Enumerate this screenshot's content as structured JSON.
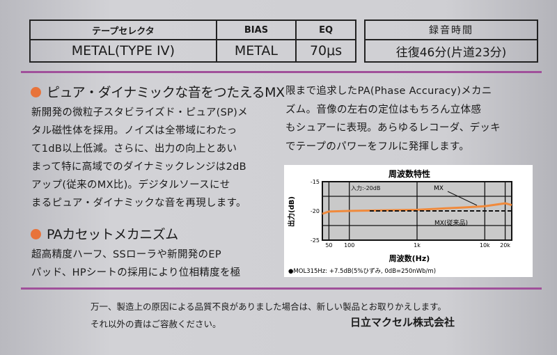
{
  "spec_table": {
    "headers": [
      "テープセレクタ",
      "BIAS",
      "EQ"
    ],
    "values": [
      "METAL(TYPE IV)",
      "METAL",
      "70μs"
    ]
  },
  "rec_time": {
    "header": "録音時間",
    "value": "往復46分(片道23分)"
  },
  "section1": {
    "heading": "ピュア・ダイナミックな音をつたえるMX",
    "lines": [
      "新開発の微粒子スタビライズド・ピュア(SP)メ",
      "タル磁性体を採用。ノイズは全帯域にわたっ",
      "て1dB以上低減。さらに、出力の向上とあい",
      "まって特に高域でのダイナミックレンジは2dB",
      "アップ(従来のMX比)。デジタルソースにせ",
      "まるピュア・ダイナミックな音を再現します。"
    ]
  },
  "section2": {
    "heading": "PAカセットメカニズム",
    "lines": [
      "超高精度ハーフ、SSローラや新開発のEP",
      "パッド、HPシートの採用により位相精度を極",
      "限まで追求したPA(Phase Accuracy)メカニ",
      "ズム。音像の左右の定位はもちろん立体感",
      "もシュアーに表現。あらゆるレコーダ、デッキ",
      "でテープのパワーをフルに発揮します。"
    ]
  },
  "chart_data": {
    "type": "line",
    "title": "周波数特性",
    "xlabel": "周波数(Hz)",
    "ylabel": "出力(dB)",
    "xscale": "log",
    "xlim": [
      40,
      25000
    ],
    "ylim": [
      -25,
      -15
    ],
    "xticks": [
      "50",
      "100",
      "1k",
      "10k",
      "20k"
    ],
    "yticks": [
      "-15",
      "-20",
      "-25"
    ],
    "annotation": "入力:-20dB",
    "grid": true,
    "series": [
      {
        "name": "MX",
        "color": "#f08a3c",
        "style": "solid",
        "x": [
          40,
          50,
          100,
          1000,
          5000,
          10000,
          20000,
          25000
        ],
        "y": [
          -20.5,
          -20.1,
          -20.0,
          -19.8,
          -19.4,
          -19.2,
          -18.7,
          -19.0
        ]
      },
      {
        "name": "MX(従来品)",
        "color": "#111111",
        "style": "dashed",
        "x": [
          200,
          1000,
          10000,
          25000
        ],
        "y": [
          -20,
          -20,
          -20,
          -20
        ]
      }
    ],
    "footnote": "●MOL315Hz: +7.5dB(5%ひずみ, 0dB=250nWb/m)"
  },
  "footer": {
    "line1": "万一、製造上の原因による品質不良がありました場合は、新しい製品とお取りかえします。",
    "line2": "それ以外の責はご容赦ください。",
    "company": "日立マクセル株式会社"
  }
}
